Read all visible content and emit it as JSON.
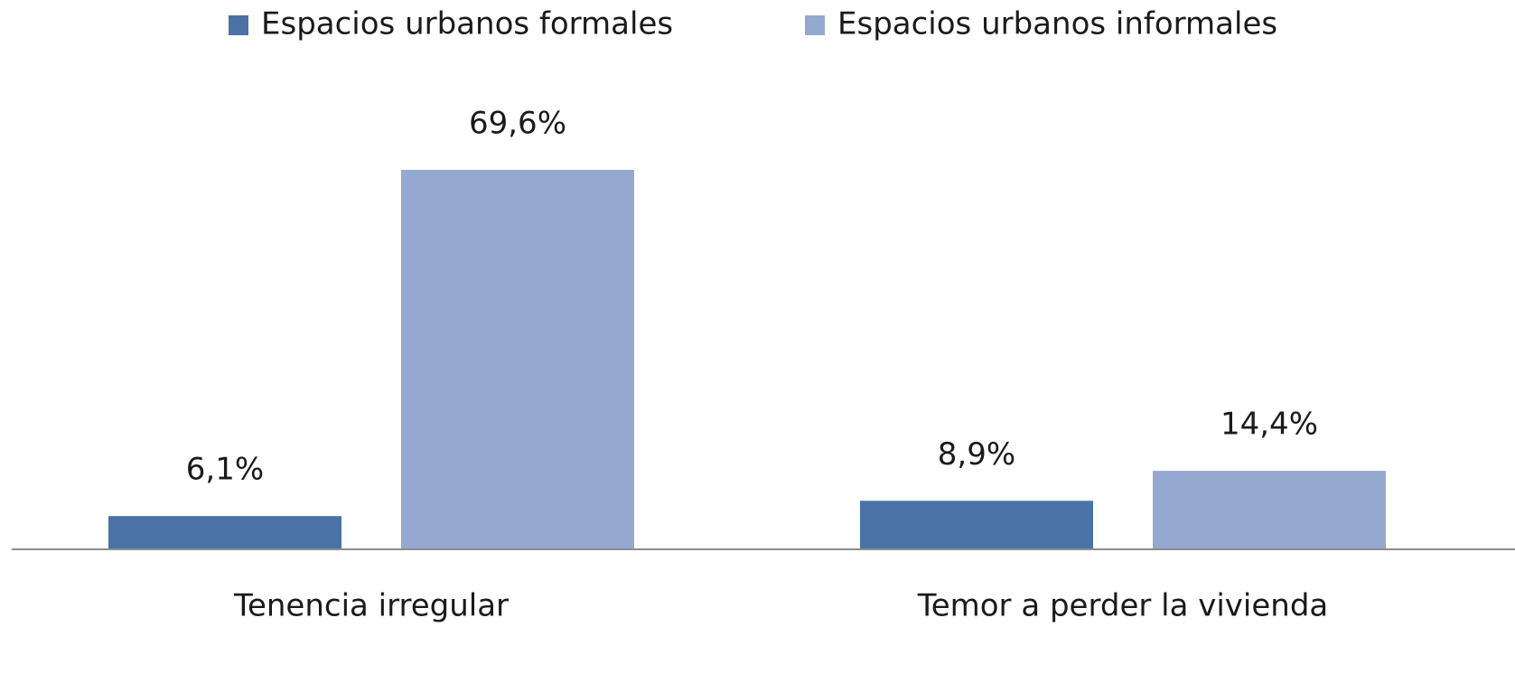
{
  "chart_data": {
    "type": "bar",
    "categories": [
      "Tenencia irregular",
      "Temor a perder la vivienda"
    ],
    "series": [
      {
        "name": "Espacios urbanos formales",
        "color": "#4a72a6",
        "values": [
          6.1,
          8.9
        ],
        "value_labels": [
          "6,1%",
          "8,9%"
        ]
      },
      {
        "name": "Espacios urbanos informales",
        "color": "#95a9d0",
        "values": [
          69.6,
          14.4
        ],
        "value_labels": [
          "69,6%",
          "14,4%"
        ]
      }
    ],
    "legend": "top"
  }
}
